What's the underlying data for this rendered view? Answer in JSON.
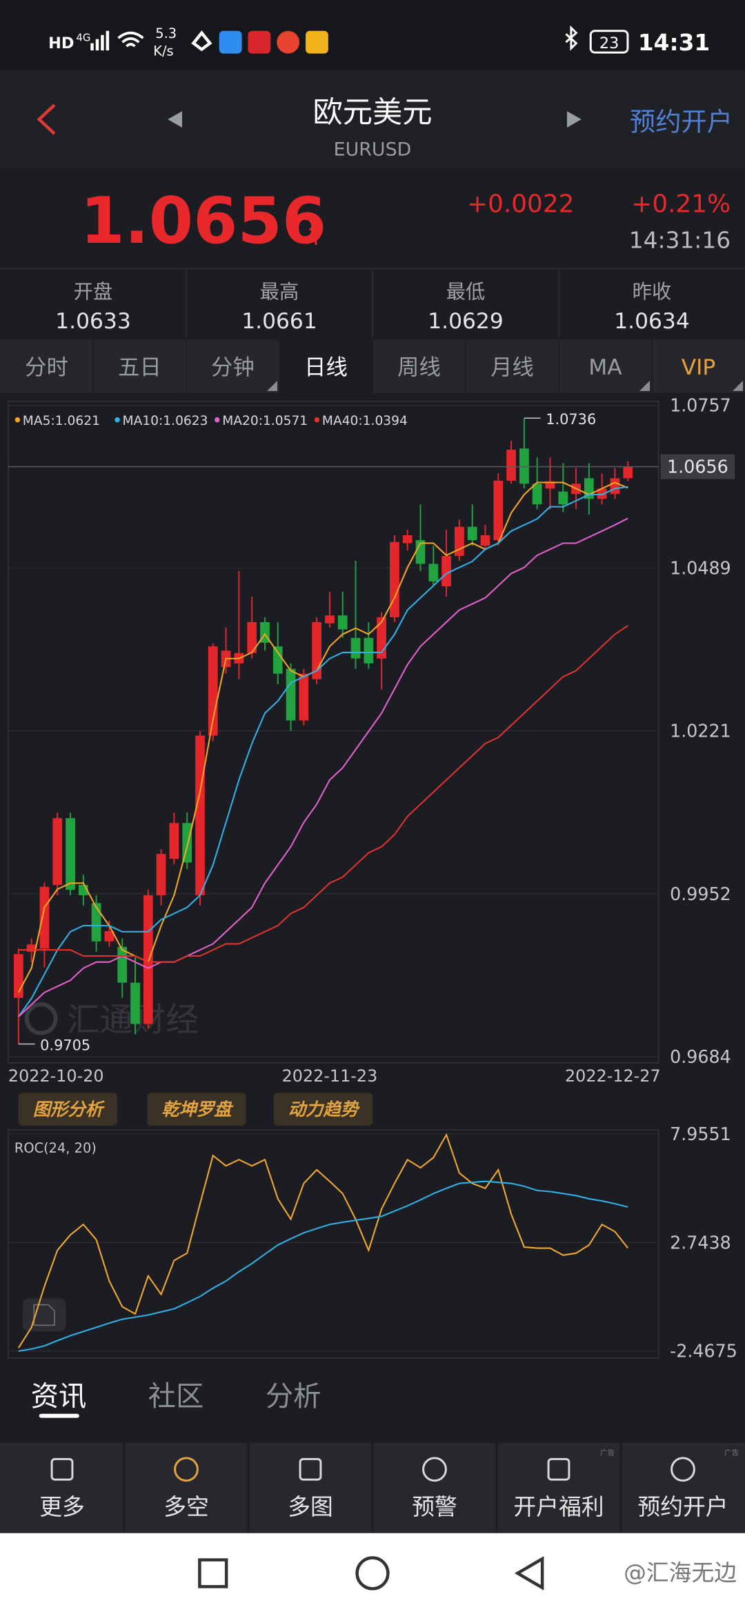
{
  "status": {
    "hd": "HD",
    "net": "4G",
    "speed": "5.3",
    "speed_unit": "K/s",
    "battery": "23",
    "time": "14:31"
  },
  "header": {
    "title": "欧元美元",
    "subtitle": "EURUSD",
    "action": "预约开户"
  },
  "quote": {
    "price": "1.0656",
    "change": "+0.0022",
    "percent": "+0.21%",
    "time": "14:31:16"
  },
  "stats": [
    {
      "label": "开盘",
      "value": "1.0633"
    },
    {
      "label": "最高",
      "value": "1.0661"
    },
    {
      "label": "最低",
      "value": "1.0629"
    },
    {
      "label": "昨收",
      "value": "1.0634"
    }
  ],
  "tabs": [
    "分时",
    "五日",
    "分钟",
    "日线",
    "周线",
    "月线",
    "MA",
    "VIP"
  ],
  "tools": [
    "图形分析",
    "乾坤罗盘",
    "动力趋势"
  ],
  "watermark": "汇通财经",
  "news_tabs": [
    "资讯",
    "社区",
    "分析"
  ],
  "nav": [
    "更多",
    "多空",
    "多图",
    "预警",
    "开户福利",
    "预约开户"
  ],
  "ad": "广告",
  "footer": "@汇海无边",
  "chart_data": [
    {
      "type": "candlestick",
      "up_color": "#e5262b",
      "down_color": "#21a33f",
      "grid": true,
      "categories": [
        "2022-10-20",
        null,
        null,
        null,
        null,
        null,
        null,
        null,
        null,
        null,
        null,
        null,
        null,
        null,
        null,
        null,
        null,
        null,
        null,
        null,
        null,
        null,
        null,
        null,
        "2022-11-23",
        null,
        null,
        null,
        null,
        null,
        null,
        null,
        null,
        null,
        null,
        null,
        null,
        null,
        null,
        null,
        null,
        null,
        null,
        null,
        null,
        null,
        null,
        "2022-12-27"
      ],
      "open": [
        0.9781,
        0.9857,
        0.9862,
        0.9967,
        1.0077,
        0.9967,
        0.9937,
        0.9874,
        0.9865,
        0.9806,
        0.9738,
        0.995,
        1.001,
        1.0069,
        0.995,
        1.0213,
        1.0326,
        1.0332,
        1.0349,
        1.04,
        1.036,
        1.0323,
        1.0238,
        1.0306,
        1.0398,
        1.0411,
        1.0374,
        1.0374,
        1.034,
        1.0408,
        1.053,
        1.0535,
        1.0496,
        1.0459,
        1.0509,
        1.0557,
        1.0526,
        1.0535,
        1.0633,
        1.0686,
        1.0628,
        1.062,
        1.0615,
        1.0611,
        1.0637,
        1.0603,
        1.0611,
        1.0637
      ],
      "high": [
        0.9862,
        0.9879,
        0.9971,
        1.0086,
        1.0086,
        0.9984,
        0.995,
        0.9908,
        0.9879,
        0.9848,
        0.9959,
        1.0026,
        1.0086,
        1.0086,
        1.0221,
        1.0365,
        1.0391,
        1.0484,
        1.0442,
        1.0408,
        1.04,
        1.0332,
        1.0323,
        1.0408,
        1.045,
        1.045,
        1.0501,
        1.04,
        1.0416,
        1.0543,
        1.0552,
        1.0594,
        1.0526,
        1.0552,
        1.0569,
        1.0594,
        1.056,
        1.0645,
        1.0699,
        1.0736,
        1.0671,
        1.0671,
        1.0662,
        1.0654,
        1.0662,
        1.0645,
        1.0654,
        1.0665
      ],
      "low": [
        0.9705,
        0.984,
        0.9831,
        0.995,
        0.995,
        0.9933,
        0.9857,
        0.9865,
        0.9781,
        0.9721,
        0.973,
        0.9933,
        1.0001,
        0.9993,
        0.9933,
        1.0204,
        1.0315,
        1.0306,
        1.034,
        1.0353,
        1.0298,
        1.0221,
        1.023,
        1.0298,
        1.0391,
        1.0374,
        1.0323,
        1.0323,
        1.0289,
        1.04,
        1.0518,
        1.0484,
        1.0459,
        1.0442,
        1.0501,
        1.0526,
        1.0518,
        1.0526,
        1.0628,
        1.062,
        1.0586,
        1.0586,
        1.0581,
        1.0586,
        1.0577,
        1.0594,
        1.0603,
        1.0632
      ],
      "close": [
        0.9853,
        0.9869,
        0.9964,
        1.0077,
        0.9959,
        0.995,
        0.9874,
        0.9891,
        0.9806,
        0.9738,
        0.995,
        1.0018,
        1.0069,
        1.0004,
        1.0213,
        1.036,
        1.0353,
        1.0349,
        1.04,
        1.0366,
        1.0315,
        1.0238,
        1.0315,
        1.04,
        1.0411,
        1.0388,
        1.034,
        1.0332,
        1.0408,
        1.0532,
        1.0543,
        1.0496,
        1.0467,
        1.0509,
        1.0557,
        1.0535,
        1.0543,
        1.0633,
        1.0684,
        1.0628,
        1.0594,
        1.0632,
        1.0594,
        1.0628,
        1.0603,
        1.062,
        1.0637,
        1.0656
      ],
      "series": [
        {
          "name": "MA5:1.0621",
          "color": "#f5a623",
          "values": [
            0.979,
            0.983,
            0.993,
            0.996,
            0.997,
            0.997,
            0.993,
            0.99,
            0.986,
            0.985,
            0.984,
            0.99,
            0.995,
            1.003,
            1.012,
            1.024,
            1.034,
            1.034,
            1.035,
            1.038,
            1.035,
            1.032,
            1.031,
            1.032,
            1.036,
            1.038,
            1.039,
            1.038,
            1.04,
            1.044,
            1.049,
            1.053,
            1.053,
            1.051,
            1.052,
            1.053,
            1.052,
            1.053,
            1.058,
            1.061,
            1.063,
            1.063,
            1.063,
            1.062,
            1.061,
            1.062,
            1.063,
            1.0621
          ]
        },
        {
          "name": "MA10:1.0623",
          "color": "#2fb1e8",
          "values": [
            0.975,
            0.978,
            0.982,
            0.986,
            0.989,
            0.99,
            0.99,
            0.99,
            0.989,
            0.989,
            0.989,
            0.991,
            0.992,
            0.993,
            0.995,
            1.0,
            1.007,
            1.014,
            1.02,
            1.025,
            1.027,
            1.03,
            1.031,
            1.032,
            1.034,
            1.035,
            1.035,
            1.035,
            1.035,
            1.038,
            1.042,
            1.044,
            1.046,
            1.048,
            1.049,
            1.05,
            1.052,
            1.053,
            1.055,
            1.056,
            1.057,
            1.059,
            1.059,
            1.06,
            1.061,
            1.061,
            1.062,
            1.0623
          ]
        },
        {
          "name": "MA20:1.0571",
          "color": "#e65fce",
          "values": [
            0.975,
            0.977,
            0.979,
            0.98,
            0.981,
            0.983,
            0.984,
            0.984,
            0.985,
            0.984,
            0.983,
            0.984,
            0.984,
            0.985,
            0.986,
            0.987,
            0.989,
            0.991,
            0.993,
            0.997,
            1.0,
            1.003,
            1.007,
            1.01,
            1.014,
            1.016,
            1.019,
            1.022,
            1.025,
            1.029,
            1.033,
            1.036,
            1.038,
            1.04,
            1.042,
            1.043,
            1.044,
            1.046,
            1.048,
            1.049,
            1.051,
            1.052,
            1.053,
            1.053,
            1.054,
            1.055,
            1.056,
            1.0571
          ]
        },
        {
          "name": "MA40:1.0394",
          "color": "#e0322e",
          "values": [
            0.986,
            0.986,
            0.986,
            0.986,
            0.986,
            0.985,
            0.985,
            0.985,
            0.985,
            0.985,
            0.984,
            0.984,
            0.984,
            0.985,
            0.985,
            0.986,
            0.987,
            0.987,
            0.988,
            0.989,
            0.99,
            0.992,
            0.993,
            0.995,
            0.997,
            0.998,
            1.0,
            1.002,
            1.003,
            1.005,
            1.008,
            1.01,
            1.012,
            1.014,
            1.016,
            1.018,
            1.02,
            1.021,
            1.023,
            1.025,
            1.027,
            1.029,
            1.031,
            1.032,
            1.034,
            1.036,
            1.038,
            1.0394
          ]
        }
      ],
      "extremes": {
        "high": 1.0736,
        "low": 0.9705
      },
      "last": 1.0656,
      "ylim": [
        0.9684,
        1.0757
      ],
      "yticks": [
        1.0757,
        1.0489,
        1.0221,
        0.9952,
        0.9684
      ]
    },
    {
      "type": "line",
      "title": "ROC(24, 20)",
      "grid": true,
      "series": [
        {
          "color": "#f0a830",
          "values": [
            -2.32,
            -1.33,
            0.64,
            2.37,
            3.11,
            3.61,
            2.87,
            0.89,
            -0.34,
            -0.69,
            1.14,
            0.25,
            1.88,
            2.23,
            4.6,
            6.92,
            6.42,
            6.72,
            6.42,
            6.72,
            4.84,
            3.86,
            5.58,
            6.23,
            5.68,
            5.09,
            3.86,
            2.37,
            4.35,
            5.58,
            6.72,
            6.33,
            6.82,
            7.91,
            6.08,
            5.58,
            5.34,
            6.23,
            4.1,
            2.52,
            2.47,
            2.47,
            2.13,
            2.23,
            2.62,
            3.61,
            3.26,
            2.47
          ]
        },
        {
          "color": "#2fb1e8",
          "values": [
            -2.47,
            -2.37,
            -2.22,
            -1.97,
            -1.73,
            -1.53,
            -1.33,
            -1.13,
            -0.94,
            -0.84,
            -0.74,
            -0.59,
            -0.44,
            -0.15,
            0.15,
            0.55,
            0.89,
            1.34,
            1.73,
            2.18,
            2.62,
            2.92,
            3.21,
            3.41,
            3.61,
            3.71,
            3.81,
            3.9,
            4.0,
            4.25,
            4.5,
            4.79,
            5.09,
            5.34,
            5.58,
            5.63,
            5.68,
            5.63,
            5.58,
            5.44,
            5.24,
            5.19,
            5.09,
            4.99,
            4.84,
            4.74,
            4.6,
            4.45
          ]
        }
      ],
      "ylim": [
        -2.4675,
        7.9551
      ],
      "yticks": [
        7.9551,
        2.7438,
        -2.4675
      ]
    }
  ]
}
